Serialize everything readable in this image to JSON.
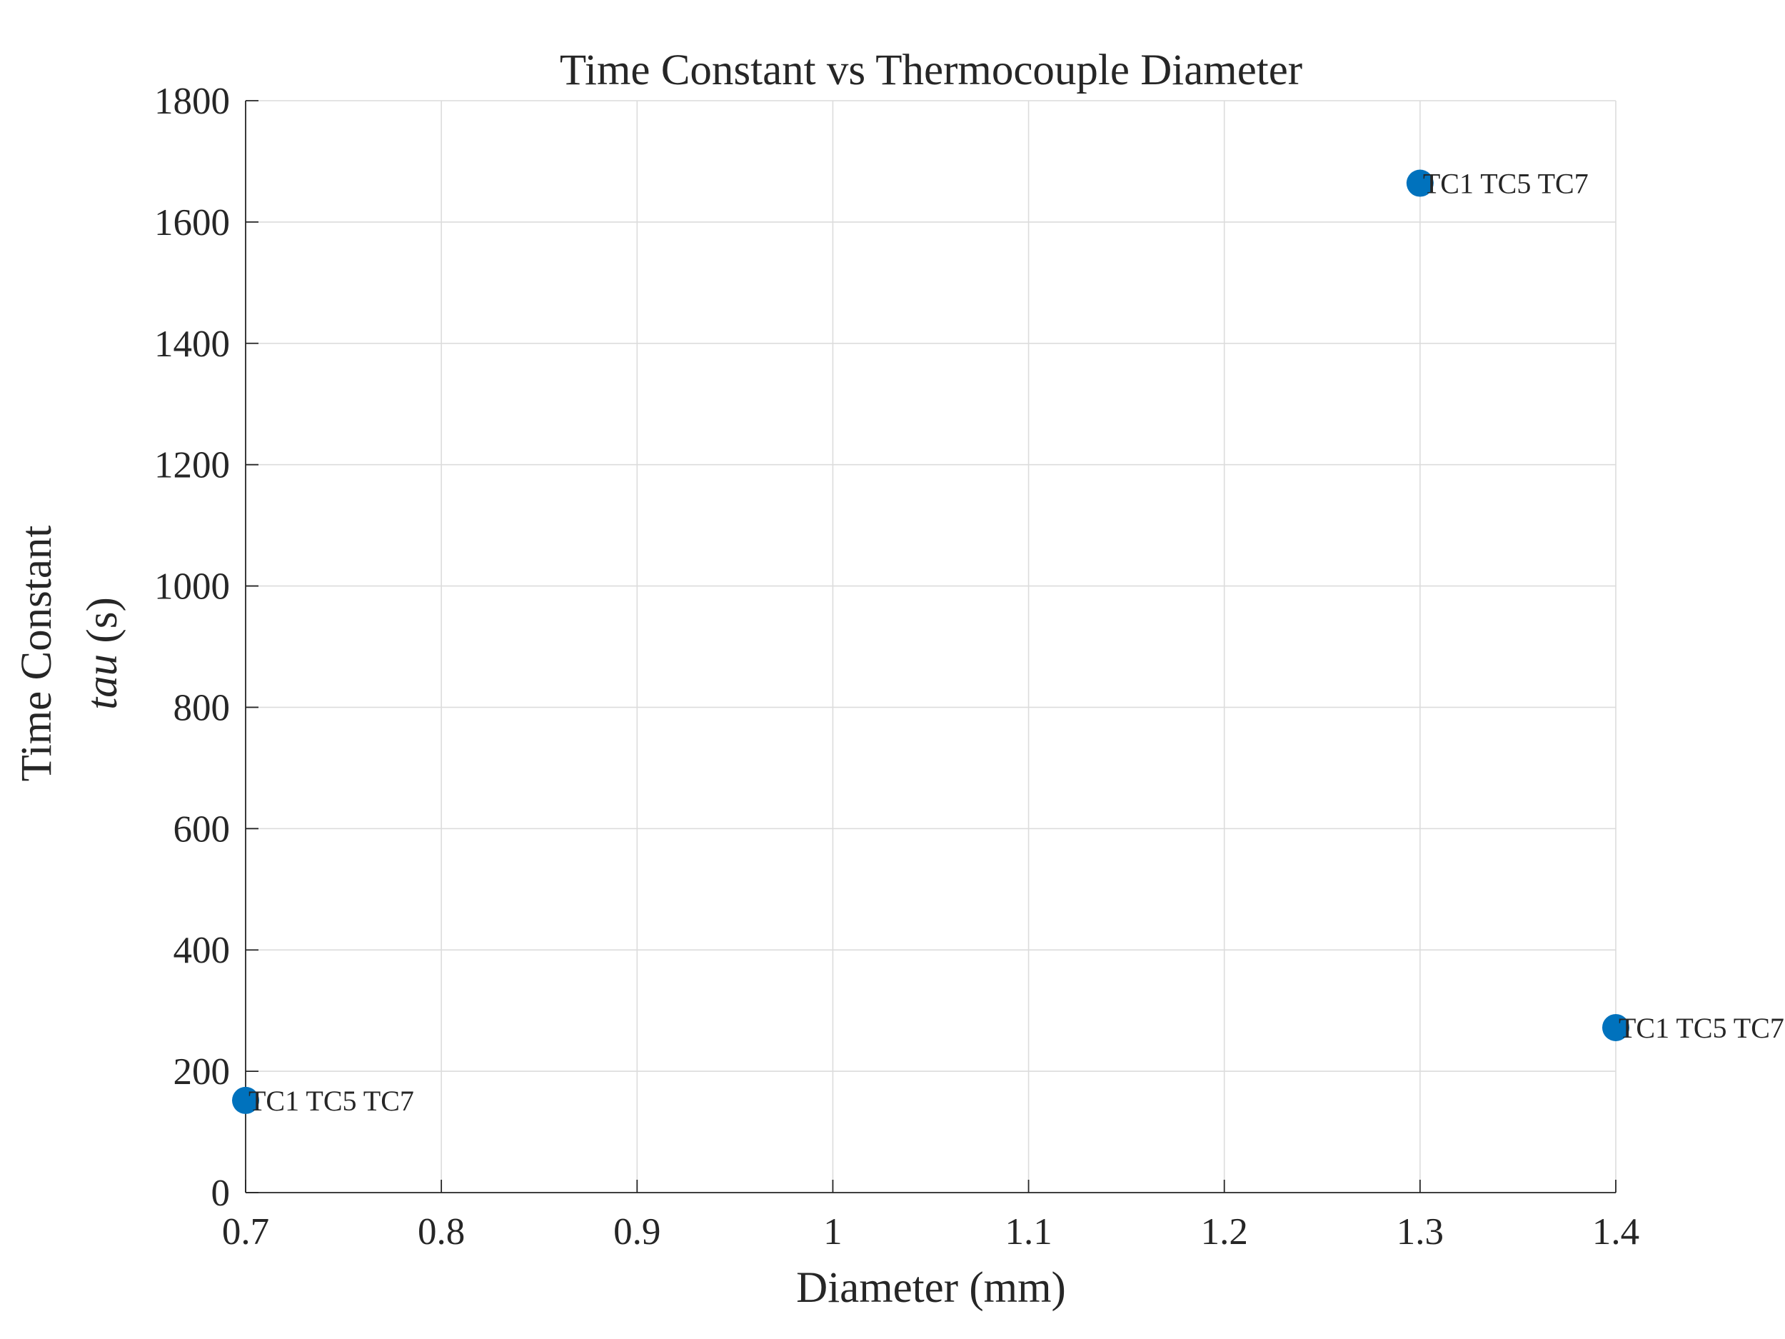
{
  "chart_data": {
    "type": "scatter",
    "title": "Time Constant vs Thermocouple Diameter",
    "xlabel": "Diameter (mm)",
    "ylabel_line1": "Time Constant",
    "ylabel_var": "tau",
    "ylabel_unit": "(s)",
    "xlim": [
      0.7,
      1.4
    ],
    "ylim": [
      0,
      1800
    ],
    "xticks": [
      0.7,
      0.8,
      0.9,
      1,
      1.1,
      1.2,
      1.3,
      1.4
    ],
    "xtick_labels": [
      "0.7",
      "0.8",
      "0.9",
      "1",
      "1.1",
      "1.2",
      "1.3",
      "1.4"
    ],
    "yticks": [
      0,
      200,
      400,
      600,
      800,
      1000,
      1200,
      1400,
      1600,
      1800
    ],
    "ytick_labels": [
      "0",
      "200",
      "400",
      "600",
      "800",
      "1000",
      "1200",
      "1400",
      "1600",
      "1800"
    ],
    "grid": true,
    "legend": "none",
    "marker_color": "#0072BD",
    "points": [
      {
        "x": 0.7,
        "y": 152,
        "label": "TC1 TC5 TC7"
      },
      {
        "x": 1.3,
        "y": 1664,
        "label": "TC1 TC5 TC7"
      },
      {
        "x": 1.4,
        "y": 272,
        "label": "TC1 TC5 TC7"
      }
    ]
  }
}
